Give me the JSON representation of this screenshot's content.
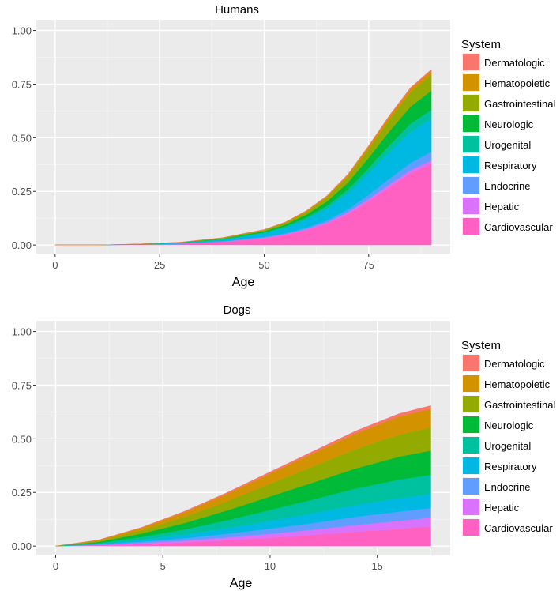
{
  "chart_data": [
    {
      "type": "area",
      "title": "Humans",
      "xlabel": "Age",
      "ylabel": "",
      "xlim": [
        -4.5,
        94.5
      ],
      "ylim": [
        -0.04,
        1.05
      ],
      "xticks": [
        0,
        25,
        50,
        75
      ],
      "xtick_labels": [
        "0",
        "25",
        "50",
        "75"
      ],
      "yticks": [
        0,
        0.25,
        0.5,
        0.75,
        1.0
      ],
      "ytick_labels": [
        "0.00",
        "0.25",
        "0.50",
        "0.75",
        "1.00"
      ],
      "legend_title": "System",
      "legend_position": "right",
      "x": [
        0,
        10,
        20,
        30,
        40,
        50,
        55,
        60,
        65,
        70,
        75,
        80,
        85,
        90
      ],
      "series": [
        {
          "name": "Cardiovascular",
          "color": "#FF61C3",
          "values": [
            0,
            0,
            0.002,
            0.006,
            0.015,
            0.032,
            0.047,
            0.07,
            0.1,
            0.145,
            0.205,
            0.27,
            0.335,
            0.38
          ]
        },
        {
          "name": "Hepatic",
          "color": "#DB72FB",
          "values": [
            0,
            0,
            0.0002,
            0.0005,
            0.001,
            0.002,
            0.003,
            0.004,
            0.005,
            0.007,
            0.009,
            0.012,
            0.014,
            0.015
          ]
        },
        {
          "name": "Endocrine",
          "color": "#619CFF",
          "values": [
            0,
            0,
            0.0002,
            0.0005,
            0.001,
            0.003,
            0.004,
            0.006,
            0.009,
            0.013,
            0.02,
            0.027,
            0.033,
            0.04
          ]
        },
        {
          "name": "Respiratory",
          "color": "#00B9E3",
          "values": [
            0,
            0,
            0.001,
            0.003,
            0.008,
            0.018,
            0.026,
            0.038,
            0.055,
            0.075,
            0.1,
            0.125,
            0.145,
            0.155
          ]
        },
        {
          "name": "Urogenital",
          "color": "#00C19F",
          "values": [
            0,
            0,
            0.0003,
            0.0008,
            0.002,
            0.004,
            0.006,
            0.009,
            0.013,
            0.018,
            0.025,
            0.032,
            0.038,
            0.04
          ]
        },
        {
          "name": "Neurologic",
          "color": "#00BA38",
          "values": [
            0,
            0,
            0.0005,
            0.001,
            0.003,
            0.006,
            0.009,
            0.014,
            0.021,
            0.032,
            0.048,
            0.065,
            0.08,
            0.09
          ]
        },
        {
          "name": "Gastrointestinal",
          "color": "#93AA00",
          "values": [
            0,
            0,
            0.0004,
            0.001,
            0.003,
            0.005,
            0.008,
            0.012,
            0.018,
            0.027,
            0.04,
            0.054,
            0.066,
            0.075
          ]
        },
        {
          "name": "Hematopoietic",
          "color": "#D39200",
          "values": [
            0,
            0,
            0.0002,
            0.0005,
            0.001,
            0.002,
            0.003,
            0.005,
            0.007,
            0.01,
            0.013,
            0.016,
            0.017,
            0.018
          ]
        },
        {
          "name": "Dermatologic",
          "color": "#F8766D",
          "values": [
            0,
            0,
            0.0001,
            0.0002,
            0.0004,
            0.0008,
            0.001,
            0.0015,
            0.002,
            0.003,
            0.004,
            0.005,
            0.006,
            0.006
          ]
        }
      ]
    },
    {
      "type": "area",
      "title": "Dogs",
      "xlabel": "Age",
      "ylabel": "",
      "xlim": [
        -0.9,
        18.4
      ],
      "ylim": [
        -0.04,
        1.05
      ],
      "xticks": [
        0,
        5,
        10,
        15
      ],
      "xtick_labels": [
        "0",
        "5",
        "10",
        "15"
      ],
      "yticks": [
        0,
        0.25,
        0.5,
        0.75,
        1.0
      ],
      "ytick_labels": [
        "0.00",
        "0.25",
        "0.50",
        "0.75",
        "1.00"
      ],
      "legend_title": "System",
      "legend_position": "right",
      "x": [
        0,
        2,
        4,
        6,
        8,
        10,
        12,
        14,
        16,
        17.5
      ],
      "series": [
        {
          "name": "Cardiovascular",
          "color": "#FF61C3",
          "values": [
            0,
            0.003,
            0.009,
            0.017,
            0.027,
            0.039,
            0.052,
            0.067,
            0.08,
            0.092
          ]
        },
        {
          "name": "Hepatic",
          "color": "#DB72FB",
          "values": [
            0,
            0.002,
            0.005,
            0.008,
            0.013,
            0.018,
            0.024,
            0.031,
            0.037,
            0.04
          ]
        },
        {
          "name": "Endocrine",
          "color": "#619CFF",
          "values": [
            0,
            0.002,
            0.006,
            0.011,
            0.017,
            0.024,
            0.031,
            0.038,
            0.043,
            0.045
          ]
        },
        {
          "name": "Respiratory",
          "color": "#00B9E3",
          "values": [
            0,
            0.003,
            0.009,
            0.017,
            0.026,
            0.036,
            0.046,
            0.055,
            0.062,
            0.065
          ]
        },
        {
          "name": "Urogenital",
          "color": "#00C19F",
          "values": [
            0,
            0.004,
            0.013,
            0.024,
            0.037,
            0.051,
            0.064,
            0.077,
            0.087,
            0.09
          ]
        },
        {
          "name": "Neurologic",
          "color": "#00BA38",
          "values": [
            0,
            0.005,
            0.016,
            0.03,
            0.046,
            0.063,
            0.079,
            0.094,
            0.107,
            0.113
          ]
        },
        {
          "name": "Gastrointestinal",
          "color": "#93AA00",
          "values": [
            0,
            0.005,
            0.015,
            0.028,
            0.043,
            0.059,
            0.075,
            0.09,
            0.103,
            0.108
          ]
        },
        {
          "name": "Hematopoietic",
          "color": "#D39200",
          "values": [
            0,
            0.004,
            0.012,
            0.023,
            0.035,
            0.048,
            0.061,
            0.073,
            0.084,
            0.087
          ]
        },
        {
          "name": "Dermatologic",
          "color": "#F8766D",
          "values": [
            0,
            0.0007,
            0.002,
            0.004,
            0.006,
            0.008,
            0.01,
            0.012,
            0.014,
            0.015
          ]
        }
      ]
    }
  ]
}
